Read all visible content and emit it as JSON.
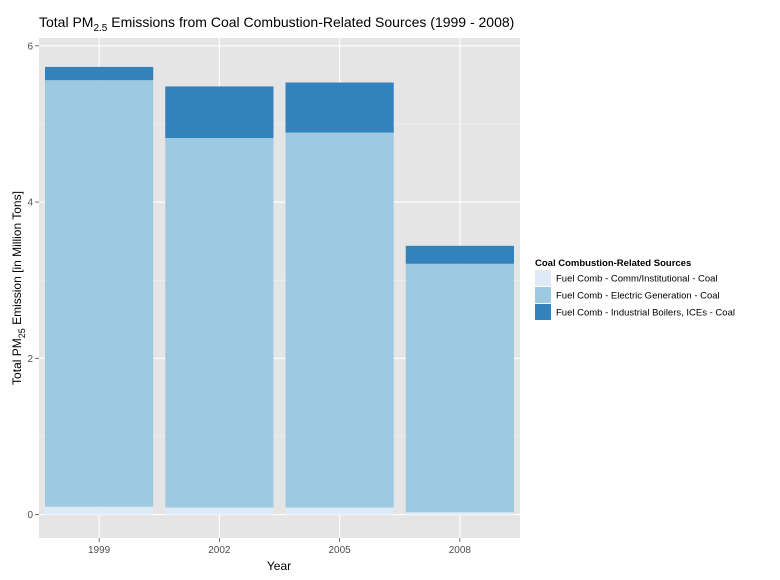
{
  "chart_data": {
    "type": "bar",
    "stacked": true,
    "title": {
      "prefix": "Total PM",
      "subscript": "2.5",
      "suffix": " Emissions from Coal Combustion-Related Sources (1999 - 2008)"
    },
    "xlabel": "Year",
    "ylabel": {
      "prefix": "Total PM",
      "subscript": "25",
      "suffix": " Emission [in Million Tons]"
    },
    "categories": [
      "1999",
      "2002",
      "2005",
      "2008"
    ],
    "ylim": [
      -0.3,
      6.1
    ],
    "yticks": [
      0,
      2,
      4,
      6
    ],
    "ytick_labels": [
      "0",
      "2",
      "4",
      "6"
    ],
    "grid": true,
    "legend": {
      "title": "Coal Combustion-Related Sources",
      "position": "right"
    },
    "series": [
      {
        "name": "Fuel Comb - Comm/Institutional - Coal",
        "color": "#deebf7",
        "values": [
          0.1,
          0.09,
          0.09,
          0.03
        ]
      },
      {
        "name": "Fuel Comb - Electric Generation - Coal",
        "color": "#9ecae1",
        "values": [
          5.46,
          4.73,
          4.8,
          3.18
        ]
      },
      {
        "name": "Fuel Comb - Industrial Boilers, ICEs - Coal",
        "color": "#3182bd",
        "values": [
          0.17,
          0.66,
          0.64,
          0.23
        ]
      }
    ]
  }
}
